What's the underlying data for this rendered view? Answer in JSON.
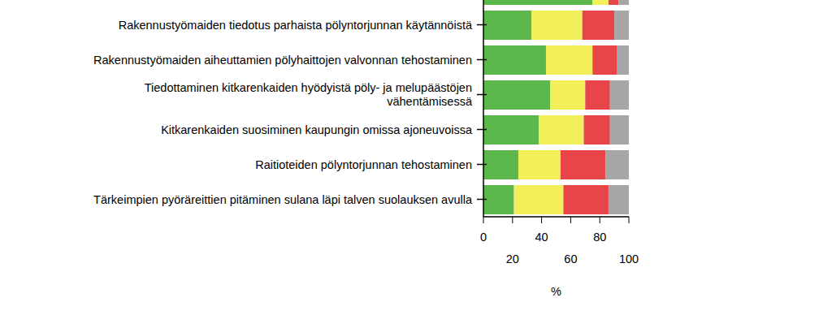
{
  "chart_data": {
    "type": "bar",
    "orientation": "horizontal",
    "stacked": true,
    "categories": [
      null,
      "Rakennustyömaiden tiedotus parhaista pölyntorjunnan käytännöistä",
      "Rakennustyömaiden aiheuttamien pölyhaittojen valvonnan tehostaminen",
      "Tiedottaminen kitkarenkaiden hyödyistä pöly- ja melupäästöjen\nvähentämisessä",
      "Kitkarenkaiden suosiminen kaupungin omissa ajoneuvoissa",
      "Raitioteiden pölyntorjunnan tehostaminen",
      "Tärkeimpien pyöräreittien pitäminen sulana läpi talven suolauksen avulla"
    ],
    "series": [
      {
        "color": "#5cb84a",
        "values": [
          75,
          33,
          43,
          46,
          38,
          24,
          21
        ]
      },
      {
        "color": "#f3ef5a",
        "values": [
          11,
          35,
          32,
          24,
          31,
          29,
          34
        ]
      },
      {
        "color": "#e8454a",
        "values": [
          7,
          22,
          17,
          17,
          18,
          31,
          31
        ]
      },
      {
        "color": "#a6a6a6",
        "values": [
          7,
          10,
          8,
          13,
          13,
          16,
          14
        ]
      }
    ],
    "xlabel": "%",
    "xlim": [
      0,
      100
    ],
    "xticks": [
      0,
      20,
      40,
      60,
      80,
      100
    ],
    "grid": false,
    "legend": false
  }
}
